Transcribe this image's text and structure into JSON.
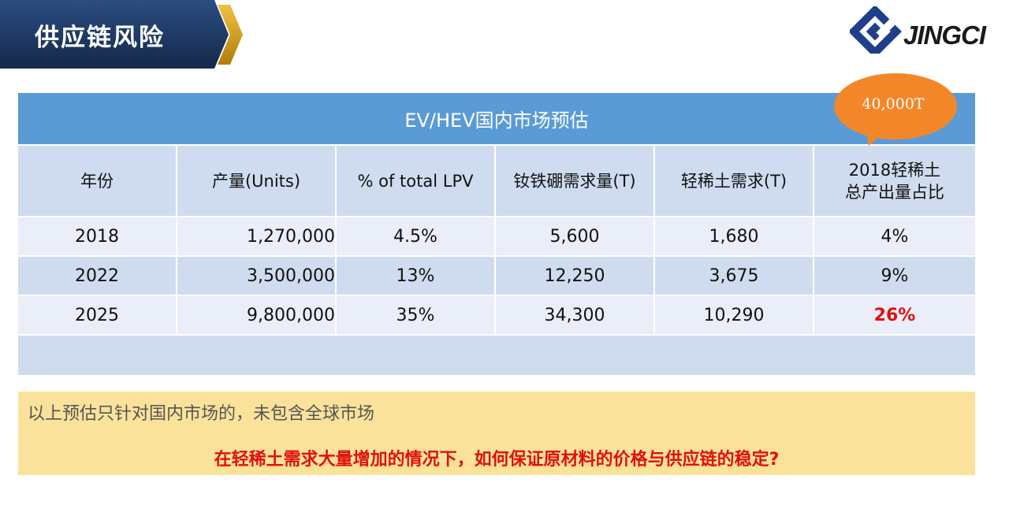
{
  "slide_title": "供应链风险",
  "logo": {
    "text": "JINGCI"
  },
  "table": {
    "title": "EV/HEV国内市场预估",
    "columns": [
      "年份",
      "产量(Units)",
      "% of total LPV",
      "钕铁硼需求量(T)",
      "轻稀土需求(T)",
      "2018轻稀土\n总产出量占比"
    ],
    "rows": [
      [
        "2018",
        "1,270,000",
        "4.5%",
        "5,600",
        "1,680",
        "4%"
      ],
      [
        "2022",
        "3,500,000",
        "13%",
        "12,250",
        "3,675",
        "9%"
      ],
      [
        "2025",
        "9,800,000",
        "35%",
        "34,300",
        "10,290",
        "26%"
      ]
    ]
  },
  "callout": {
    "text": "40,000T",
    "color": "#f4862a"
  },
  "note": {
    "line1": "以上预估只针对国内市场的，未包含全球市场",
    "line2": "在轻稀土需求大量增加的情况下，如何保证原材料的价格与供应链的稳定?"
  },
  "colors": {
    "banner_dark": "#1f3a66",
    "banner_accent": "#d9a520",
    "header_blue": "#5b9bd5",
    "row_dark": "#cfdcf0",
    "row_light": "#e9eef8",
    "note_bg": "#fbe29a",
    "highlight_red": "#e01010"
  }
}
